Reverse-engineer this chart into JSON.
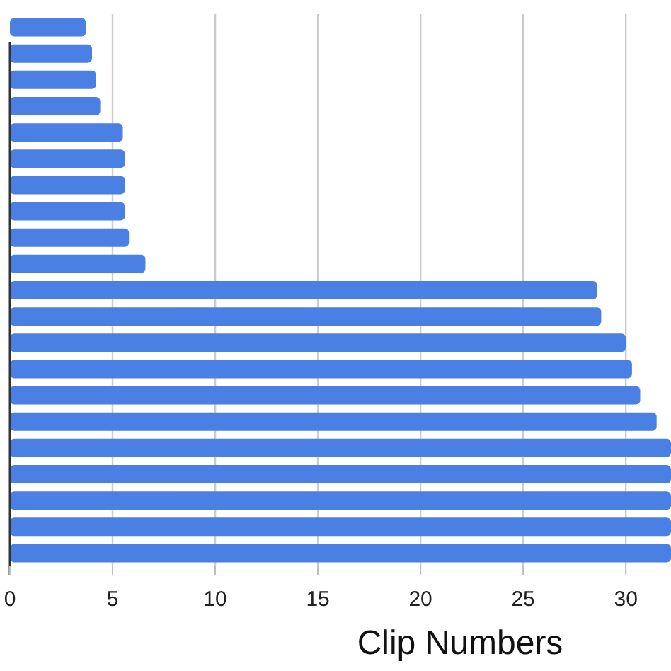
{
  "chart_data": {
    "type": "bar",
    "orientation": "horizontal",
    "xlabel": "Clip Numbers",
    "categories": [
      null,
      null,
      null,
      null,
      null,
      null,
      null,
      null,
      null,
      null,
      null,
      null,
      null,
      null,
      null,
      null,
      null,
      null,
      null,
      null,
      null
    ],
    "values": [
      3.7,
      4.0,
      4.2,
      4.4,
      5.5,
      5.6,
      5.6,
      5.6,
      5.8,
      6.6,
      28.6,
      28.8,
      30.0,
      30.3,
      30.7,
      31.5,
      32.2,
      32.2,
      32.2,
      32.2,
      32.2
    ],
    "color": "#4a80e4",
    "xlim": [
      0,
      32.2
    ],
    "xticks": [
      0,
      5,
      10,
      15,
      20,
      25,
      30
    ],
    "grid": "x"
  }
}
